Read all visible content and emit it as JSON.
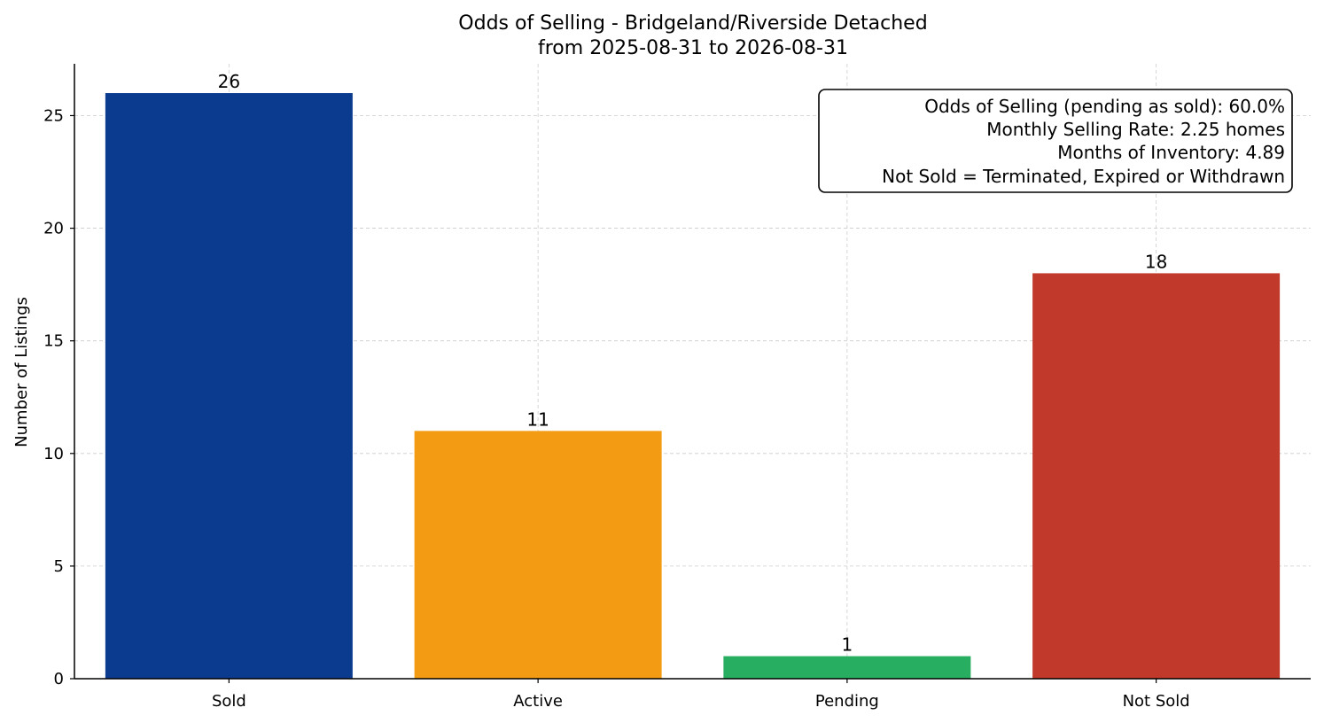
{
  "chart_data": {
    "type": "bar",
    "title": [
      "Odds of Selling - Bridgeland/Riverside Detached",
      "from 2025-08-31 to 2026-08-31"
    ],
    "xlabel": "",
    "ylabel": "Number of Listings",
    "categories": [
      "Sold",
      "Active",
      "Pending",
      "Not Sold"
    ],
    "values": [
      26,
      11,
      1,
      18
    ],
    "data_labels": [
      "26",
      "11",
      "1",
      "18"
    ],
    "colors": [
      "#0b3b8f",
      "#f39c13",
      "#27ae60",
      "#c0392b"
    ],
    "ylim": [
      0,
      27.3
    ],
    "yticks": [
      0,
      5,
      10,
      15,
      20,
      25
    ],
    "grid": true,
    "annotation": {
      "placement": "top-right",
      "lines": [
        "Odds of Selling (pending as sold): 60.0%",
        "Monthly Selling Rate: 2.25 homes",
        "Months of Inventory: 4.89",
        "Not Sold = Terminated, Expired or Withdrawn"
      ]
    }
  }
}
